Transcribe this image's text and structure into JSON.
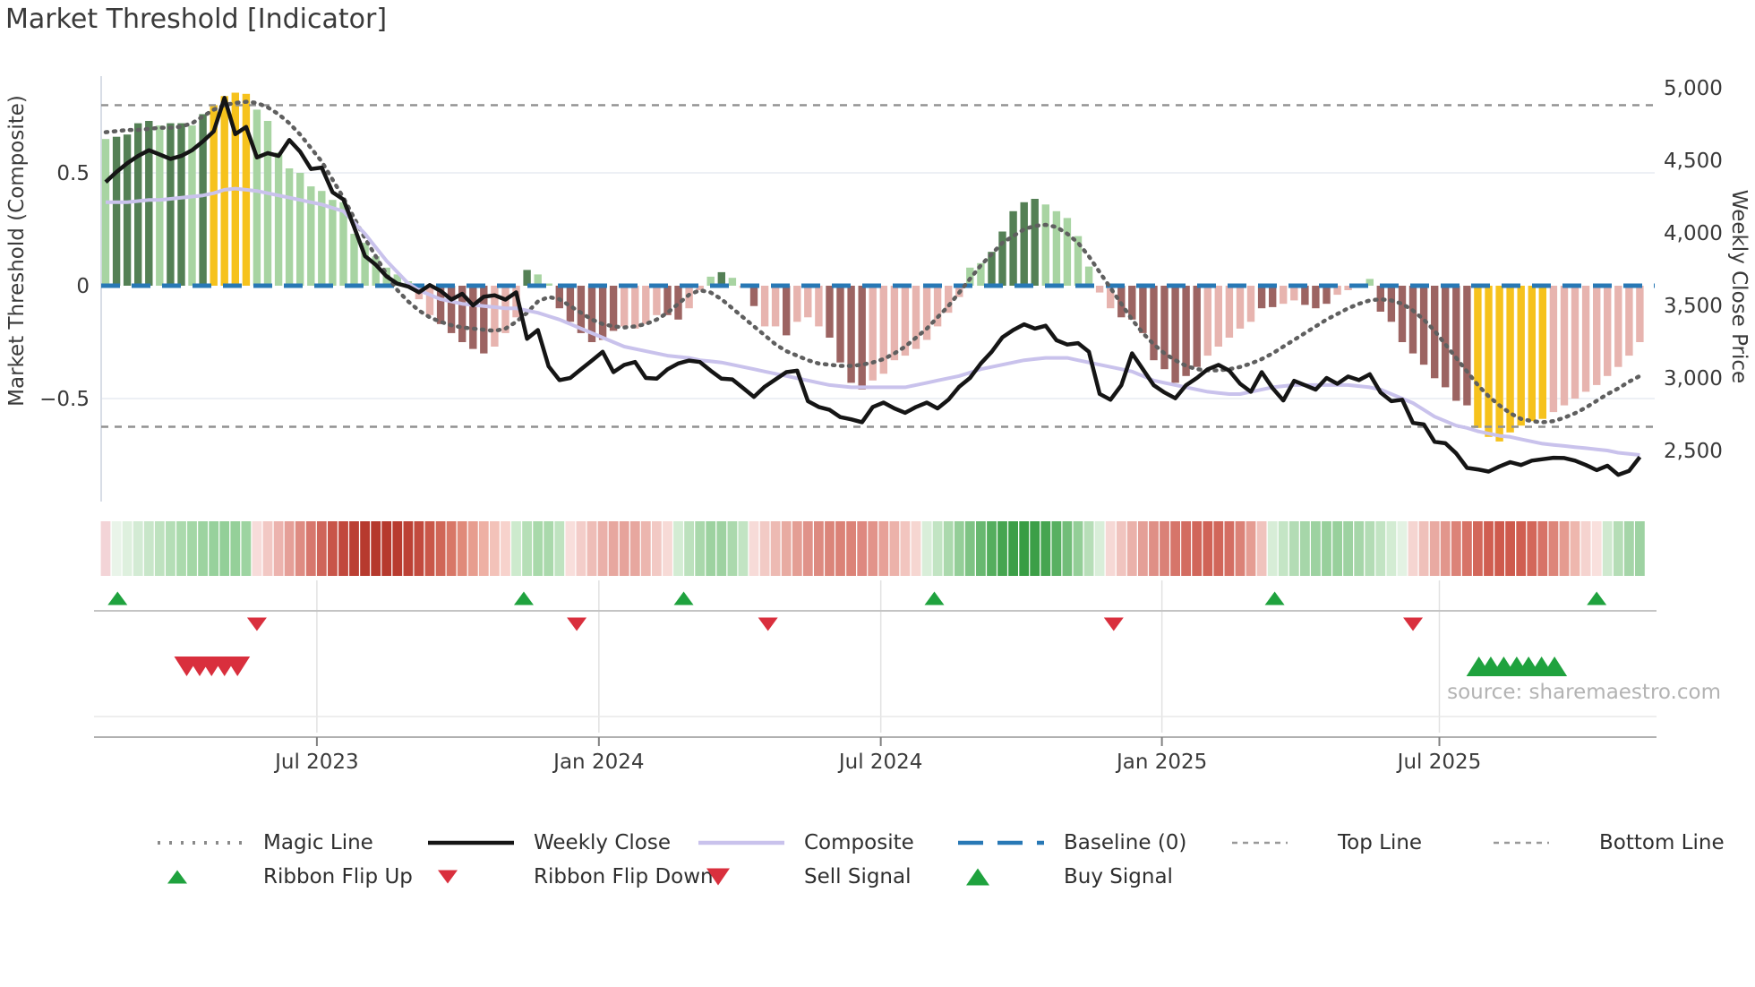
{
  "title": "Market Threshold [Indicator]",
  "source": "source: sharemaestro.com",
  "axes": {
    "left": {
      "title": "Market Threshold (Composite)",
      "ticks": [
        {
          "label": "0.5",
          "value": 0.5
        },
        {
          "label": "0",
          "value": 0
        },
        {
          "label": "−0.5",
          "value": -0.5
        }
      ]
    },
    "right": {
      "title": "Weekly Close Price",
      "ticks": [
        {
          "label": "5,000",
          "value": 5000
        },
        {
          "label": "4,500",
          "value": 4500
        },
        {
          "label": "4,000",
          "value": 4000
        },
        {
          "label": "3,500",
          "value": 3500
        },
        {
          "label": "3,000",
          "value": 3000
        },
        {
          "label": "2,500",
          "value": 2500
        }
      ]
    },
    "x": {
      "ticks": [
        {
          "label": "Jul 2023",
          "week": 19.55
        },
        {
          "label": "Jan 2024",
          "week": 45.65
        },
        {
          "label": "Jul 2024",
          "week": 71.74
        },
        {
          "label": "Jan 2025",
          "week": 97.76
        },
        {
          "label": "Jul 2025",
          "week": 123.44
        }
      ]
    }
  },
  "colors": {
    "bar_light_green": "#a8d4a2",
    "bar_dark_green": "#548055",
    "bar_yellow": "#f6c21c",
    "bar_light_pink": "#e7b4af",
    "bar_dark_red": "#9c6462",
    "weekly_close": "#151515",
    "composite_line": "#c9c2ec",
    "magic_line": "#5f5f5f",
    "baseline": "#2878b5",
    "top_bottom_line": "#909090",
    "grid": "#edf0f5",
    "spine": "#d8dde6",
    "signal_green": "#1fa23e",
    "signal_red": "#d92f3d",
    "axis_text": "#3a3a3a",
    "separator": "#c4c4c4"
  },
  "chart_data": {
    "type": "bar",
    "subtype": "composite-indicator-with-price-overlay",
    "weeks": 143,
    "ylim_left": [
      -0.9,
      0.95
    ],
    "ylim_right": [
      2300,
      5000
    ],
    "baseline": 0,
    "top_line": 0.8,
    "bottom_line": -0.625,
    "composite_bars": {
      "values": [
        0.65,
        0.66,
        0.67,
        0.72,
        0.73,
        0.71,
        0.72,
        0.72,
        0.71,
        0.76,
        0.8,
        0.84,
        0.855,
        0.85,
        0.78,
        0.73,
        0.59,
        0.52,
        0.5,
        0.44,
        0.42,
        0.38,
        0.37,
        0.23,
        0.19,
        0.13,
        0.08,
        0.05,
        0.02,
        -0.06,
        -0.13,
        -0.17,
        -0.21,
        -0.25,
        -0.28,
        -0.3,
        -0.27,
        -0.21,
        -0.14,
        0.07,
        0.05,
        0.01,
        -0.1,
        -0.16,
        -0.21,
        -0.25,
        -0.24,
        -0.2,
        -0.18,
        -0.19,
        -0.17,
        -0.13,
        -0.13,
        -0.15,
        -0.1,
        -0.02,
        0.04,
        0.06,
        0.035,
        -0.01,
        -0.09,
        -0.18,
        -0.18,
        -0.22,
        -0.16,
        -0.14,
        -0.18,
        -0.23,
        -0.34,
        -0.43,
        -0.46,
        -0.42,
        -0.39,
        -0.33,
        -0.31,
        -0.28,
        -0.24,
        -0.18,
        -0.12,
        -0.05,
        0.08,
        0.1,
        0.15,
        0.24,
        0.33,
        0.37,
        0.385,
        0.36,
        0.33,
        0.3,
        0.22,
        0.085,
        -0.03,
        -0.1,
        -0.14,
        -0.15,
        -0.21,
        -0.33,
        -0.37,
        -0.43,
        -0.4,
        -0.36,
        -0.31,
        -0.27,
        -0.23,
        -0.19,
        -0.16,
        -0.1,
        -0.095,
        -0.08,
        -0.065,
        -0.085,
        -0.1,
        -0.08,
        -0.04,
        -0.02,
        -0.01,
        0.03,
        -0.115,
        -0.16,
        -0.25,
        -0.3,
        -0.35,
        -0.41,
        -0.45,
        -0.51,
        -0.53,
        -0.63,
        -0.67,
        -0.69,
        -0.65,
        -0.62,
        -0.6,
        -0.59,
        -0.56,
        -0.53,
        -0.5,
        -0.47,
        -0.44,
        -0.4,
        -0.36,
        -0.31,
        -0.25
      ],
      "color_codes": [
        "lg",
        "dg",
        "dg",
        "dg",
        "dg",
        "lg",
        "dg",
        "dg",
        "lg",
        "dg",
        "y",
        "y",
        "y",
        "y",
        "lg",
        "lg",
        "lg",
        "lg",
        "lg",
        "lg",
        "lg",
        "lg",
        "lg",
        "lg",
        "lg",
        "lg",
        "lg",
        "lg",
        "lg",
        "lp",
        "lp",
        "dr",
        "dr",
        "dr",
        "dr",
        "dr",
        "lp",
        "lp",
        "lp",
        "dg",
        "lg",
        "lg",
        "dr",
        "dr",
        "dr",
        "dr",
        "dr",
        "dr",
        "lp",
        "lp",
        "lp",
        "lp",
        "dr",
        "dr",
        "lp",
        "lp",
        "lg",
        "dg",
        "lg",
        "lp",
        "dr",
        "lp",
        "lp",
        "dr",
        "lp",
        "lp",
        "lp",
        "dr",
        "dr",
        "dr",
        "dr",
        "lp",
        "lp",
        "lp",
        "lp",
        "lp",
        "lp",
        "lp",
        "lp",
        "lp",
        "lg",
        "lg",
        "dg",
        "dg",
        "dg",
        "dg",
        "dg",
        "lg",
        "lg",
        "lg",
        "lg",
        "lg",
        "lp",
        "lp",
        "dr",
        "dr",
        "dr",
        "dr",
        "dr",
        "dr",
        "dr",
        "dr",
        "lp",
        "lp",
        "lp",
        "lp",
        "lp",
        "dr",
        "dr",
        "lp",
        "lp",
        "dr",
        "dr",
        "dr",
        "lp",
        "lp",
        "lp",
        "lg",
        "dr",
        "dr",
        "dr",
        "dr",
        "dr",
        "dr",
        "dr",
        "dr",
        "dr",
        "y",
        "y",
        "y",
        "y",
        "y",
        "y",
        "y",
        "lp",
        "lp",
        "lp",
        "lp",
        "lp",
        "lp",
        "lp",
        "lp",
        "lp"
      ]
    },
    "weekly_close": [
      4350,
      4420,
      4480,
      4530,
      4570,
      4540,
      4510,
      4530,
      4570,
      4630,
      4700,
      4930,
      4680,
      4730,
      4520,
      4550,
      4530,
      4640,
      4560,
      4440,
      4450,
      4280,
      4230,
      4040,
      3840,
      3780,
      3700,
      3650,
      3630,
      3590,
      3640,
      3600,
      3540,
      3580,
      3500,
      3560,
      3570,
      3540,
      3590,
      3270,
      3330,
      3080,
      2985,
      3000,
      3060,
      3120,
      3180,
      3040,
      3090,
      3110,
      3000,
      2995,
      3060,
      3100,
      3120,
      3110,
      3050,
      2995,
      2990,
      2930,
      2870,
      2940,
      2990,
      3040,
      3050,
      2840,
      2800,
      2780,
      2730,
      2715,
      2695,
      2800,
      2830,
      2790,
      2760,
      2800,
      2830,
      2790,
      2850,
      2940,
      3000,
      3100,
      3180,
      3280,
      3330,
      3370,
      3340,
      3360,
      3260,
      3230,
      3240,
      3180,
      2890,
      2850,
      2950,
      3170,
      3060,
      2950,
      2900,
      2860,
      2950,
      3000,
      3060,
      3090,
      3050,
      2960,
      2905,
      3040,
      2930,
      2845,
      2980,
      2950,
      2920,
      3000,
      2960,
      3010,
      2985,
      3025,
      2900,
      2840,
      2850,
      2690,
      2680,
      2560,
      2550,
      2480,
      2380,
      2370,
      2355,
      2390,
      2420,
      2400,
      2430,
      2440,
      2450,
      2448,
      2430,
      2400,
      2365,
      2395,
      2333,
      2360,
      2455
    ],
    "composite_line": [
      0.37,
      0.37,
      0.37,
      0.375,
      0.38,
      0.38,
      0.385,
      0.39,
      0.395,
      0.4,
      0.41,
      0.425,
      0.43,
      0.425,
      0.42,
      0.41,
      0.4,
      0.39,
      0.38,
      0.37,
      0.36,
      0.345,
      0.33,
      0.28,
      0.23,
      0.17,
      0.11,
      0.06,
      0.01,
      -0.02,
      -0.04,
      -0.06,
      -0.07,
      -0.08,
      -0.085,
      -0.09,
      -0.095,
      -0.1,
      -0.1,
      -0.11,
      -0.12,
      -0.135,
      -0.15,
      -0.17,
      -0.19,
      -0.21,
      -0.23,
      -0.25,
      -0.27,
      -0.28,
      -0.29,
      -0.3,
      -0.31,
      -0.315,
      -0.32,
      -0.33,
      -0.335,
      -0.34,
      -0.35,
      -0.36,
      -0.37,
      -0.38,
      -0.39,
      -0.4,
      -0.41,
      -0.42,
      -0.43,
      -0.44,
      -0.445,
      -0.45,
      -0.45,
      -0.45,
      -0.45,
      -0.45,
      -0.45,
      -0.44,
      -0.43,
      -0.42,
      -0.41,
      -0.4,
      -0.385,
      -0.37,
      -0.36,
      -0.35,
      -0.34,
      -0.33,
      -0.325,
      -0.32,
      -0.32,
      -0.32,
      -0.33,
      -0.34,
      -0.35,
      -0.36,
      -0.37,
      -0.38,
      -0.4,
      -0.42,
      -0.43,
      -0.44,
      -0.45,
      -0.46,
      -0.47,
      -0.475,
      -0.48,
      -0.48,
      -0.47,
      -0.46,
      -0.45,
      -0.445,
      -0.44,
      -0.44,
      -0.44,
      -0.44,
      -0.44,
      -0.44,
      -0.445,
      -0.45,
      -0.46,
      -0.48,
      -0.5,
      -0.52,
      -0.55,
      -0.58,
      -0.6,
      -0.62,
      -0.63,
      -0.645,
      -0.655,
      -0.665,
      -0.67,
      -0.68,
      -0.69,
      -0.7,
      -0.705,
      -0.71,
      -0.715,
      -0.72,
      -0.725,
      -0.73,
      -0.74,
      -0.745,
      -0.75
    ],
    "magic_line": [
      0.68,
      0.685,
      0.69,
      0.69,
      0.695,
      0.7,
      0.7,
      0.705,
      0.72,
      0.75,
      0.78,
      0.8,
      0.81,
      0.815,
      0.81,
      0.79,
      0.76,
      0.72,
      0.67,
      0.61,
      0.55,
      0.47,
      0.39,
      0.3,
      0.21,
      0.13,
      0.05,
      -0.02,
      -0.07,
      -0.11,
      -0.14,
      -0.16,
      -0.175,
      -0.185,
      -0.19,
      -0.195,
      -0.2,
      -0.19,
      -0.16,
      -0.12,
      -0.07,
      -0.05,
      -0.06,
      -0.09,
      -0.12,
      -0.15,
      -0.17,
      -0.18,
      -0.185,
      -0.18,
      -0.17,
      -0.15,
      -0.12,
      -0.08,
      -0.04,
      -0.02,
      -0.03,
      -0.06,
      -0.1,
      -0.14,
      -0.18,
      -0.22,
      -0.26,
      -0.29,
      -0.31,
      -0.33,
      -0.345,
      -0.35,
      -0.355,
      -0.355,
      -0.35,
      -0.34,
      -0.325,
      -0.3,
      -0.27,
      -0.23,
      -0.19,
      -0.14,
      -0.09,
      -0.03,
      0.03,
      0.09,
      0.14,
      0.19,
      0.22,
      0.25,
      0.265,
      0.27,
      0.26,
      0.23,
      0.19,
      0.13,
      0.06,
      -0.01,
      -0.08,
      -0.15,
      -0.21,
      -0.26,
      -0.3,
      -0.33,
      -0.355,
      -0.37,
      -0.375,
      -0.375,
      -0.37,
      -0.36,
      -0.345,
      -0.325,
      -0.3,
      -0.27,
      -0.24,
      -0.21,
      -0.18,
      -0.15,
      -0.125,
      -0.1,
      -0.08,
      -0.065,
      -0.06,
      -0.065,
      -0.08,
      -0.11,
      -0.15,
      -0.2,
      -0.26,
      -0.32,
      -0.38,
      -0.44,
      -0.49,
      -0.53,
      -0.565,
      -0.59,
      -0.6,
      -0.605,
      -0.6,
      -0.585,
      -0.565,
      -0.54,
      -0.51,
      -0.48,
      -0.455,
      -0.425,
      -0.4
    ],
    "ribbon_colors": [
      "#f3d4d7",
      "#e9f4e9",
      "#def0de",
      "#d3ebd4",
      "#c8e6c9",
      "#bee2bf",
      "#b4deb6",
      "#abdaad",
      "#a3d7a6",
      "#9cd3a0",
      "#97d19c",
      "#93cf98",
      "#95d099",
      "#9dd4a1",
      "#f7dcda",
      "#f2c8c4",
      "#ecb3ae",
      "#e59f98",
      "#de8b82",
      "#d7776d",
      "#cf655a",
      "#c85549",
      "#c1483c",
      "#bb3f33",
      "#b73a2e",
      "#b5382c",
      "#b6392d",
      "#b83b2f",
      "#bc4135",
      "#c24a3e",
      "#c95749",
      "#d06657",
      "#d87767",
      "#e08a7a",
      "#e79d8f",
      "#eeb0a4",
      "#f3c2b9",
      "#f7d2cc",
      "#cdeacd",
      "#b6dfb7",
      "#a8d9aa",
      "#aad9ac",
      "#bfe3c0",
      "#f8dedb",
      "#f3cdc9",
      "#eebdb7",
      "#eab0a9",
      "#e7a79f",
      "#e6a39b",
      "#e7a79f",
      "#ecb6af",
      "#f2c9c4",
      "#f7dad6",
      "#d3ecd3",
      "#bce1bd",
      "#a9d8ab",
      "#9dd2a0",
      "#9ed2a1",
      "#abd9ad",
      "#c2e4c3",
      "#f7dbd8",
      "#f2cac5",
      "#edbab3",
      "#e8aba2",
      "#e49e94",
      "#e09289",
      "#dd8a80",
      "#db857a",
      "#db8277",
      "#dc8378",
      "#de8880",
      "#e2938a",
      "#e7a198",
      "#ecb2aa",
      "#f2c5bf",
      "#f6d6d1",
      "#d9eed9",
      "#c2e4c3",
      "#abd9ad",
      "#94ce98",
      "#7ec384",
      "#68b870",
      "#55ae5e",
      "#46a550",
      "#3c9f47",
      "#389d44",
      "#3c9f47",
      "#46a550",
      "#58b061",
      "#72bd79",
      "#93ce97",
      "#b7deb8",
      "#d9eed9",
      "#f6d8d5",
      "#f0c4bf",
      "#eab1aa",
      "#e49f97",
      "#df8f86",
      "#da8177",
      "#d6756a",
      "#d36c61",
      "#d1665a",
      "#d06357",
      "#d1665a",
      "#d46e63",
      "#db8277",
      "#e59d93",
      "#f0c3bd",
      "#d7edd7",
      "#c4e5c5",
      "#b3dcb5",
      "#a6d6a9",
      "#9dd2a1",
      "#98d09c",
      "#98d09c",
      "#9dd2a1",
      "#a6d6a9",
      "#b3dcb5",
      "#c2e4c3",
      "#d3ecd3",
      "#e3f2e3",
      "#f5d5d1",
      "#efc0ba",
      "#e9aaa2",
      "#e2968c",
      "#dc8378",
      "#d77367",
      "#d3675a",
      "#d05e51",
      "#ce5a4d",
      "#ce5a4d",
      "#d05e51",
      "#d3675a",
      "#d77367",
      "#dd8579",
      "#e59b90",
      "#eeb7ae",
      "#f5d3cf",
      "#f9e0dd",
      "#cfe9cf",
      "#b5ddb6",
      "#a5d5a8",
      "#9ed2a2"
    ],
    "signals": {
      "ribbon_flip_up_weeks": [
        1.1,
        38.7,
        53.5,
        76.7,
        108.2,
        138.0
      ],
      "ribbon_flip_down_weeks": [
        14.0,
        43.6,
        61.3,
        93.3,
        121.0
      ],
      "sell_signal_weeks": [
        7.5,
        8.7,
        9.8,
        11.0,
        12.2
      ],
      "buy_signal_weeks": [
        127.1,
        128.2,
        129.4,
        130.6,
        131.7,
        132.9,
        134.1
      ]
    }
  },
  "legend": {
    "row1": [
      {
        "label": "Magic Line",
        "type": "dotted-gray"
      },
      {
        "label": "Weekly Close",
        "type": "solid-black"
      },
      {
        "label": "Composite",
        "type": "solid-lavender"
      },
      {
        "label": "Baseline (0)",
        "type": "dashed-blue"
      },
      {
        "label": "Top Line",
        "type": "dashed-gray"
      },
      {
        "label": "Bottom Line",
        "type": "dashed-gray"
      }
    ],
    "row2": [
      {
        "label": "Ribbon Flip Up",
        "type": "triangle-up-green-small"
      },
      {
        "label": "Ribbon Flip Down",
        "type": "triangle-down-red-small"
      },
      {
        "label": "Sell Signal",
        "type": "triangle-down-red"
      },
      {
        "label": "Buy Signal",
        "type": "triangle-up-green"
      }
    ]
  }
}
